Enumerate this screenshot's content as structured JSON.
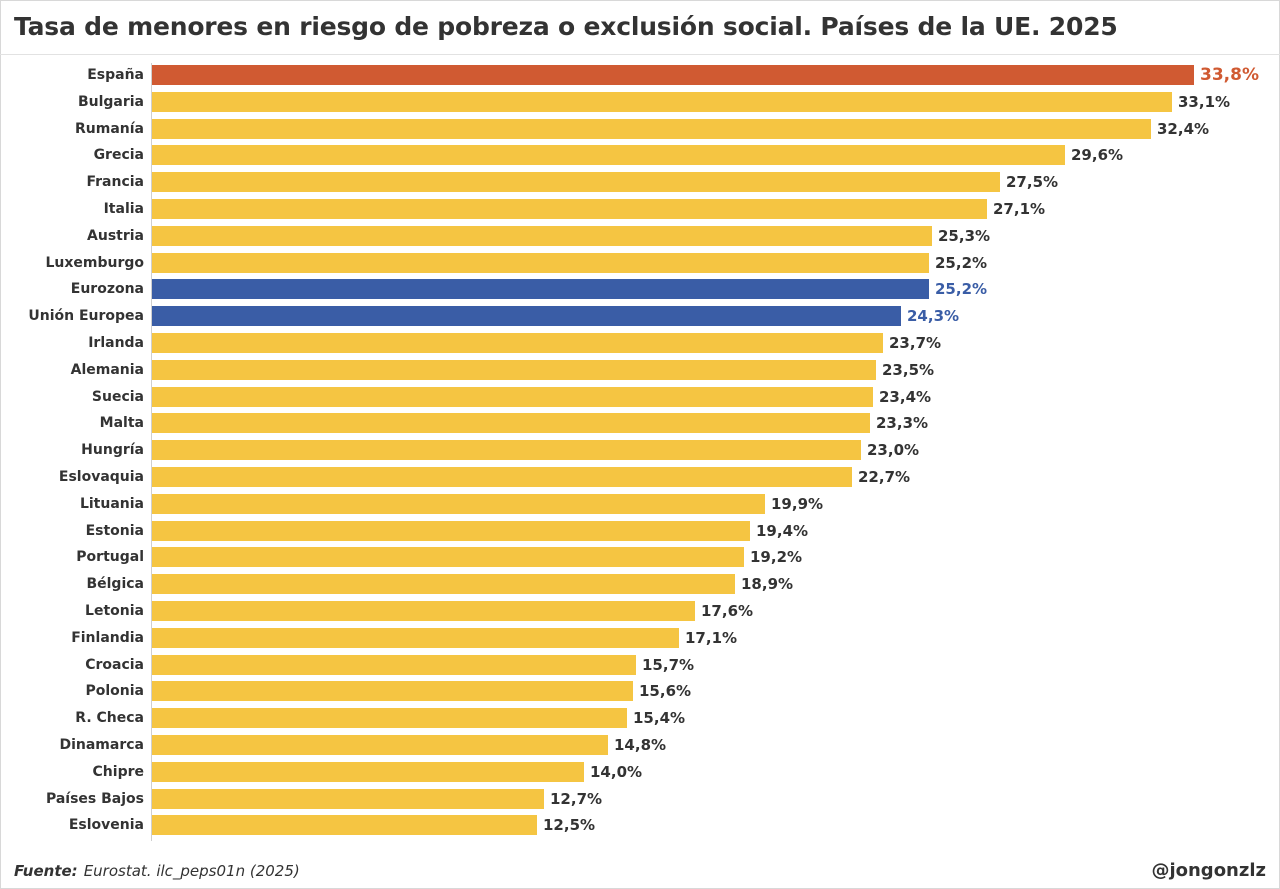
{
  "colors": {
    "default_bar": "#f5c542",
    "spain_bar": "#d05a32",
    "eu_bar": "#3a5da6",
    "text": "#333333"
  },
  "chart_data": {
    "type": "bar",
    "orientation": "horizontal",
    "title": "Tasa de menores en riesgo de pobreza o exclusión social. Países de la UE. 2025",
    "xlim": [
      0,
      33.8
    ],
    "unit": "%",
    "categories": [
      "España",
      "Bulgaria",
      "Rumanía",
      "Grecia",
      "Francia",
      "Italia",
      "Austria",
      "Luxemburgo",
      "Eurozona",
      "Unión Europea",
      "Irlanda",
      "Alemania",
      "Suecia",
      "Malta",
      "Hungría",
      "Eslovaquia",
      "Lituania",
      "Estonia",
      "Portugal",
      "Bélgica",
      "Letonia",
      "Finlandia",
      "Croacia",
      "Polonia",
      "R. Checa",
      "Dinamarca",
      "Chipre",
      "Países Bajos",
      "Eslovenia"
    ],
    "values": [
      33.8,
      33.1,
      32.4,
      29.6,
      27.5,
      27.1,
      25.3,
      25.2,
      25.2,
      24.3,
      23.7,
      23.5,
      23.4,
      23.3,
      23.0,
      22.7,
      19.9,
      19.4,
      19.2,
      18.9,
      17.6,
      17.1,
      15.7,
      15.6,
      15.4,
      14.8,
      14.0,
      12.7,
      12.5
    ],
    "value_labels": [
      "33,8%",
      "33,1%",
      "32,4%",
      "29,6%",
      "27,5%",
      "27,1%",
      "25,3%",
      "25,2%",
      "25,2%",
      "24,3%",
      "23,7%",
      "23,5%",
      "23,4%",
      "23,3%",
      "23,0%",
      "22,7%",
      "19,9%",
      "19,4%",
      "19,2%",
      "18,9%",
      "17,6%",
      "17,1%",
      "15,7%",
      "15,6%",
      "15,4%",
      "14,8%",
      "14,0%",
      "12,7%",
      "12,5%"
    ],
    "highlight": {
      "España": "spain",
      "Eurozona": "eu",
      "Unión Europea": "eu"
    }
  },
  "footer": {
    "source_label": "Fuente:",
    "source_text": "Eurostat. ilc_peps01n (2025)",
    "handle": "@jongonzlz"
  }
}
